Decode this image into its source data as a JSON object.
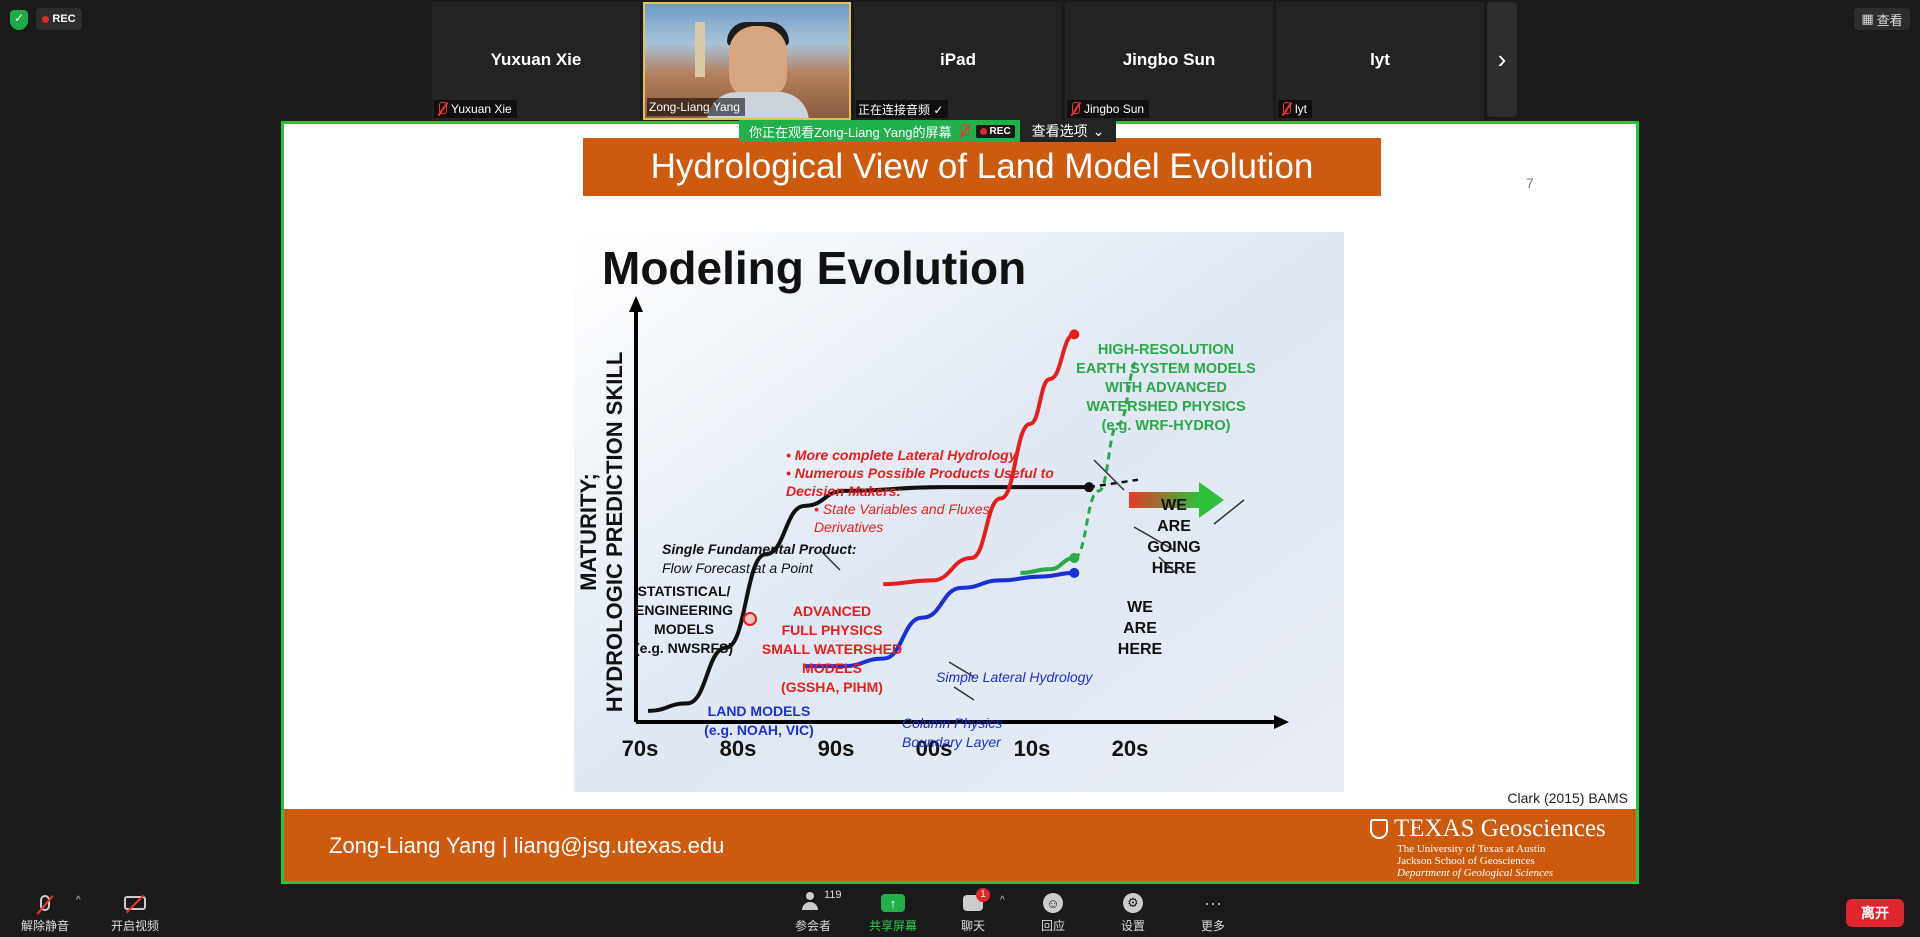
{
  "top": {
    "rec_label": "REC",
    "view_label": "查看"
  },
  "participants": [
    {
      "big_name": "Yuxuan Xie",
      "tag": "Yuxuan Xie",
      "muted": true
    },
    {
      "big_name": "",
      "tag": "Zong-Liang Yang",
      "muted": false,
      "video": true
    },
    {
      "big_name": "iPad",
      "tag": "正在连接音频 ✓",
      "muted": false
    },
    {
      "big_name": "Jingbo Sun",
      "tag": "Jingbo Sun",
      "muted": true
    },
    {
      "big_name": "lyt",
      "tag": "lyt",
      "muted": true
    }
  ],
  "banner": {
    "viewing_text": "你正在观看Zong-Liang Yang的屏幕",
    "rec": "REC",
    "options": "查看选项"
  },
  "slide": {
    "title": "Hydrological View of Land Model Evolution",
    "page_number": "7",
    "citation": "Clark (2015) BAMS",
    "footer_text": "Zong-Liang Yang  |  liang@jsg.utexas.edu",
    "logo": {
      "title": "TEXAS Geosciences",
      "line1": "The University of Texas at Austin",
      "line2": "Jackson School of Geosciences",
      "line3": "Department of Geological Sciences"
    }
  },
  "chart_data": {
    "type": "line",
    "title": "Modeling Evolution",
    "xlabel": "",
    "ylabel": "MATURITY; HYDROLOGIC PREDICTION SKILL",
    "categories": [
      "70s",
      "80s",
      "90s",
      "00s",
      "10s",
      "20s"
    ],
    "ylim": [
      0,
      100
    ],
    "series": [
      {
        "name": "Statistical/Engineering models",
        "color": "#111111",
        "x": [
          0,
          0.4,
          0.8,
          1.2,
          1.6,
          2.0,
          3.0,
          4.0,
          4.5
        ],
        "values": [
          3,
          5,
          20,
          45,
          58,
          62,
          63,
          63,
          63
        ]
      },
      {
        "name": "Land models",
        "color": "#1a2fd6",
        "x": [
          1.6,
          2.0,
          2.4,
          2.8,
          3.2,
          3.6,
          4.0,
          4.35
        ],
        "values": [
          15,
          15,
          17,
          28,
          36,
          38,
          39,
          40
        ]
      },
      {
        "name": "Advanced full physics small watershed models",
        "color": "#e51e1e",
        "x": [
          2.4,
          2.9,
          3.3,
          3.6,
          3.9,
          4.1,
          4.35
        ],
        "values": [
          37,
          38,
          44,
          60,
          80,
          92,
          104
        ]
      },
      {
        "name": "High-resolution earth system models",
        "color": "#2aa84a",
        "dashed_from": 4.35,
        "x": [
          3.8,
          4.1,
          4.35,
          4.6,
          4.8,
          5.0
        ],
        "values": [
          40,
          41,
          44,
          62,
          80,
          97
        ]
      }
    ],
    "annotations": {
      "black_heading": "Single Fundamental Product:",
      "black_sub": "Flow Forecast at a Point",
      "stat_model": [
        "STATISTICAL/",
        "ENGINEERING",
        "MODELS",
        "(e.g. NWSRFS)"
      ],
      "red_bullets": [
        "More complete Lateral Hydrology",
        "Numerous Possible Products Useful to",
        "Decision Makers:"
      ],
      "red_sub_bullets": [
        "State Variables and Fluxes,",
        "Derivatives"
      ],
      "advanced": [
        "ADVANCED",
        "FULL PHYSICS",
        "SMALL WATERSHED",
        "MODELS",
        "(GSSHA, PIHM)"
      ],
      "land": [
        "LAND MODELS",
        "(e.g. NOAH, VIC)"
      ],
      "column_physics": [
        "Column Physics",
        "Boundary Layer"
      ],
      "simple_lateral": "Simple Lateral Hydrology",
      "green_heading": [
        "HIGH-RESOLUTION",
        "EARTH SYSTEM MODELS",
        "WITH ADVANCED",
        "WATERSHED PHYSICS",
        "(e.g. WRF-HYDRO)"
      ],
      "going": [
        "WE",
        "ARE",
        "GOING",
        "HERE"
      ],
      "here": [
        "WE",
        "ARE",
        "HERE"
      ]
    }
  },
  "toolbar": {
    "unmute": "解除静音",
    "start_video": "开启视频",
    "participants": "参会者",
    "participant_count": "119",
    "share": "共享屏幕",
    "chat": "聊天",
    "chat_badge": "1",
    "reactions": "回应",
    "settings": "设置",
    "more": "更多",
    "leave": "离开"
  }
}
